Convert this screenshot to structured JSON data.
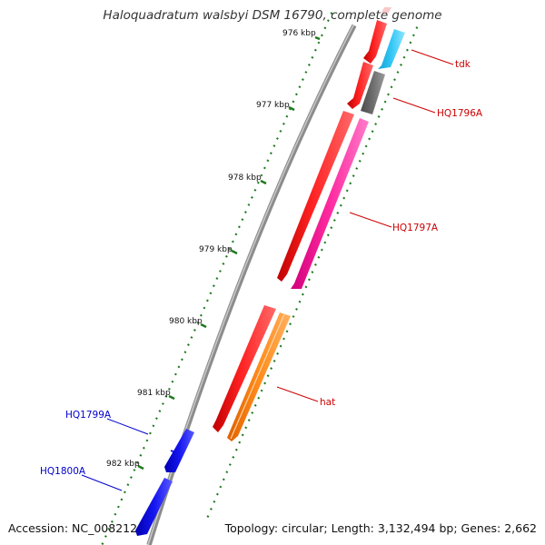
{
  "title": "Haloquadratum walsbyi DSM 16790, complete genome",
  "footer": {
    "accession": "Accession: NC_008212",
    "summary": "Topology: circular; Length: 3,132,494 bp; Genes: 2,662"
  },
  "colors": {
    "backbone": "#8c8c8c",
    "tick": "#1e7a1e",
    "orf_red": "#ff1a1a",
    "tdk": "#33c8f5",
    "hq1796a": "#6e6e6e",
    "hq1797a": "#ff2aa0",
    "hat": "#ff8c1a",
    "blue": "#1010e6",
    "label_red": "#cc0000",
    "label_blue": "#0000cc"
  },
  "ticks": [
    {
      "label": "976 kbp"
    },
    {
      "label": "977 kbp"
    },
    {
      "label": "978 kbp"
    },
    {
      "label": "979 kbp"
    },
    {
      "label": "980 kbp"
    },
    {
      "label": "981 kbp"
    },
    {
      "label": "982 kbp"
    }
  ],
  "gene_labels": {
    "tdk": "tdk",
    "hq1796a": "HQ1796A",
    "hq1797a": "HQ1797A",
    "hat": "hat",
    "hq1799a": "HQ1799A",
    "hq1800a": "HQ1800A"
  }
}
